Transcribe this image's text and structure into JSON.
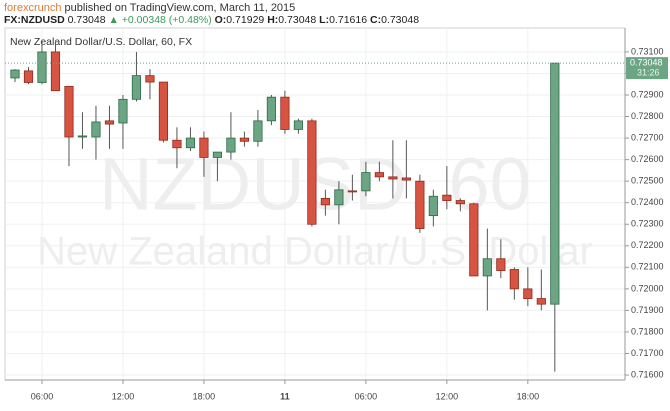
{
  "header": {
    "author": "forexcrunch",
    "published": "published on TradingView.com, March 11, 2015",
    "symbol": "FX:NZDUSD",
    "last": "0.73048",
    "change": "▲ +0.00348 (+0.48%)",
    "open_key": "O:",
    "open": "0.71929",
    "high_key": "H:",
    "high": "0.73048",
    "low_key": "L:",
    "low": "0.71616",
    "close_key": "C:",
    "close": "0.73048"
  },
  "chart_data": {
    "type": "candlestick",
    "title": "New Zealand Dollar/U.S. Dollar, 60, FX",
    "watermark_symbol": "NZDUSD, 60",
    "watermark_name": "New Zealand Dollar/U.S. Dollar",
    "up_color": "#6ba583",
    "down_color": "#d75442",
    "countdown": "31:26",
    "open": [
      0.72979,
      0.73012,
      0.72958,
      0.731,
      0.7294,
      0.72705,
      0.72705,
      0.7278,
      0.7277,
      0.7288,
      0.7299,
      0.7296,
      0.7269,
      0.72655,
      0.727,
      0.7261,
      0.72635,
      0.727,
      0.72685,
      0.7278,
      0.7289,
      0.7274,
      0.7278,
      0.7242,
      0.7239,
      0.72455,
      0.72455,
      0.7254,
      0.7252,
      0.72515,
      0.725,
      0.7234,
      0.72435,
      0.7241,
      0.72395,
      0.7206,
      0.7214,
      0.7209,
      0.72,
      0.71955,
      0.71929
    ],
    "high": [
      0.7302,
      0.7303,
      0.7315,
      0.7315,
      0.7294,
      0.7282,
      0.7285,
      0.7285,
      0.729,
      0.731,
      0.7302,
      0.7296,
      0.7275,
      0.7275,
      0.7273,
      0.7262,
      0.7282,
      0.7273,
      0.7283,
      0.729,
      0.7292,
      0.7279,
      0.7279,
      0.7246,
      0.725,
      0.7253,
      0.7259,
      0.7259,
      0.7269,
      0.7269,
      0.7253,
      0.7246,
      0.7257,
      0.7242,
      0.724,
      0.7228,
      0.7223,
      0.721,
      0.721,
      0.7209,
      0.73048
    ],
    "low": [
      0.7296,
      0.7295,
      0.7295,
      0.7292,
      0.7257,
      0.7265,
      0.726,
      0.7265,
      0.7265,
      0.7287,
      0.7288,
      0.7268,
      0.7256,
      0.7264,
      0.7252,
      0.725,
      0.726,
      0.7266,
      0.7266,
      0.7276,
      0.7272,
      0.7272,
      0.7229,
      0.7234,
      0.723,
      0.7241,
      0.7243,
      0.725,
      0.7242,
      0.7242,
      0.7226,
      0.7229,
      0.7237,
      0.7236,
      0.7206,
      0.719,
      0.7205,
      0.7195,
      0.7192,
      0.719,
      0.71616
    ],
    "close": [
      0.73016,
      0.72958,
      0.731,
      0.7292,
      0.72705,
      0.7271,
      0.72775,
      0.72765,
      0.7288,
      0.7299,
      0.7296,
      0.7269,
      0.72655,
      0.727,
      0.7261,
      0.72635,
      0.727,
      0.72685,
      0.7278,
      0.7289,
      0.7274,
      0.7278,
      0.723,
      0.7239,
      0.7246,
      0.7245,
      0.7254,
      0.7252,
      0.7251,
      0.72505,
      0.7228,
      0.7243,
      0.7241,
      0.72395,
      0.7206,
      0.7214,
      0.72085,
      0.72,
      0.71955,
      0.71929,
      0.73048
    ],
    "xlim": [
      -0.74,
      45.2
    ],
    "xticks": [
      {
        "value": 2,
        "label": "06:00"
      },
      {
        "value": 8,
        "label": "12:00"
      },
      {
        "value": 14,
        "label": "18:00"
      },
      {
        "value": 20,
        "label": "11"
      },
      {
        "value": 26,
        "label": "06:00"
      },
      {
        "value": 32,
        "label": "12:00"
      },
      {
        "value": 38,
        "label": "18:00"
      }
    ],
    "ylim": [
      0.71577,
      0.73211
    ],
    "yticks": [
      {
        "value": 0.716,
        "label": "0.71600"
      },
      {
        "value": 0.717,
        "label": "0.71700"
      },
      {
        "value": 0.718,
        "label": "0.71800"
      },
      {
        "value": 0.719,
        "label": "0.71900"
      },
      {
        "value": 0.72,
        "label": "0.72000"
      },
      {
        "value": 0.721,
        "label": "0.72100"
      },
      {
        "value": 0.722,
        "label": "0.72200"
      },
      {
        "value": 0.723,
        "label": "0.72300"
      },
      {
        "value": 0.724,
        "label": "0.72400"
      },
      {
        "value": 0.725,
        "label": "0.72500"
      },
      {
        "value": 0.726,
        "label": "0.72600"
      },
      {
        "value": 0.727,
        "label": "0.72700"
      },
      {
        "value": 0.728,
        "label": "0.72800"
      },
      {
        "value": 0.729,
        "label": "0.72900"
      },
      {
        "value": 0.73,
        "label": "0.73000"
      },
      {
        "value": 0.731,
        "label": "0.73100"
      }
    ],
    "grid": true
  }
}
